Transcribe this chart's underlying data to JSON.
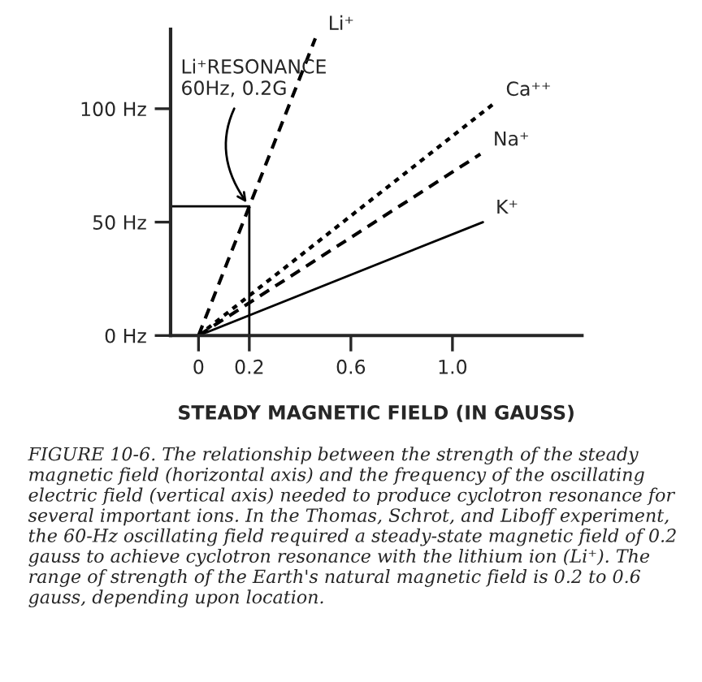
{
  "chart_data": {
    "type": "line",
    "xlabel": "STEADY MAGNETIC FIELD (IN GAUSS)",
    "xlim": [
      -0.11,
      1.51
    ],
    "ylim": [
      0,
      135
    ],
    "xticks": [
      0,
      0.2,
      0.6,
      {
        "value": 1,
        "label": "1.0"
      }
    ],
    "yticks": [
      {
        "value": 0,
        "label": "0 Hz"
      },
      {
        "value": 50,
        "label": "50 Hz"
      },
      {
        "value": 100,
        "label": "100 Hz"
      }
    ],
    "grid": false,
    "legend": false,
    "series": [
      {
        "name": "Li⁺",
        "color": "#000000",
        "line_style": "dashed",
        "x": [
          0,
          0.46
        ],
        "values": [
          0,
          131
        ]
      },
      {
        "name": "Ca⁺⁺",
        "color": "#000000",
        "line_style": "dotted",
        "x": [
          0,
          1.16
        ],
        "values": [
          0,
          102
        ]
      },
      {
        "name": "Na⁺",
        "color": "#000000",
        "line_style": "dashed",
        "x": [
          0,
          1.11
        ],
        "values": [
          0,
          80
        ]
      },
      {
        "name": "K⁺",
        "color": "#000000",
        "line_style": "solid",
        "x": [
          0,
          1.12
        ],
        "values": [
          0,
          50
        ]
      },
      {
        "color": "#000000",
        "line_style": "solid",
        "x": [
          -0.11,
          0.2,
          0.2
        ],
        "values": [
          57,
          57,
          0
        ]
      }
    ],
    "annotations": [
      {
        "text": "Li⁺RESONANCE\n60Hz, 0.2G",
        "x": 0.2,
        "y": 57
      },
      "FIGURE 10-6. The relationship between the strength of the steady magnetic field (horizontal axis) and the frequency of the oscillating electric field (vertical axis) needed to produce cyclotron resonance for several important ions. In the Thomas, Schrot, and Liboff experiment, the 60-Hz oscillating field required a steady-state magnetic field of 0.2 gauss to achieve cyclotron resonance with the lithium ion (Li⁺). The range of strength of the Earth's natural magnetic field is 0.2 to 0.6 gauss, depending upon location."
    ]
  }
}
